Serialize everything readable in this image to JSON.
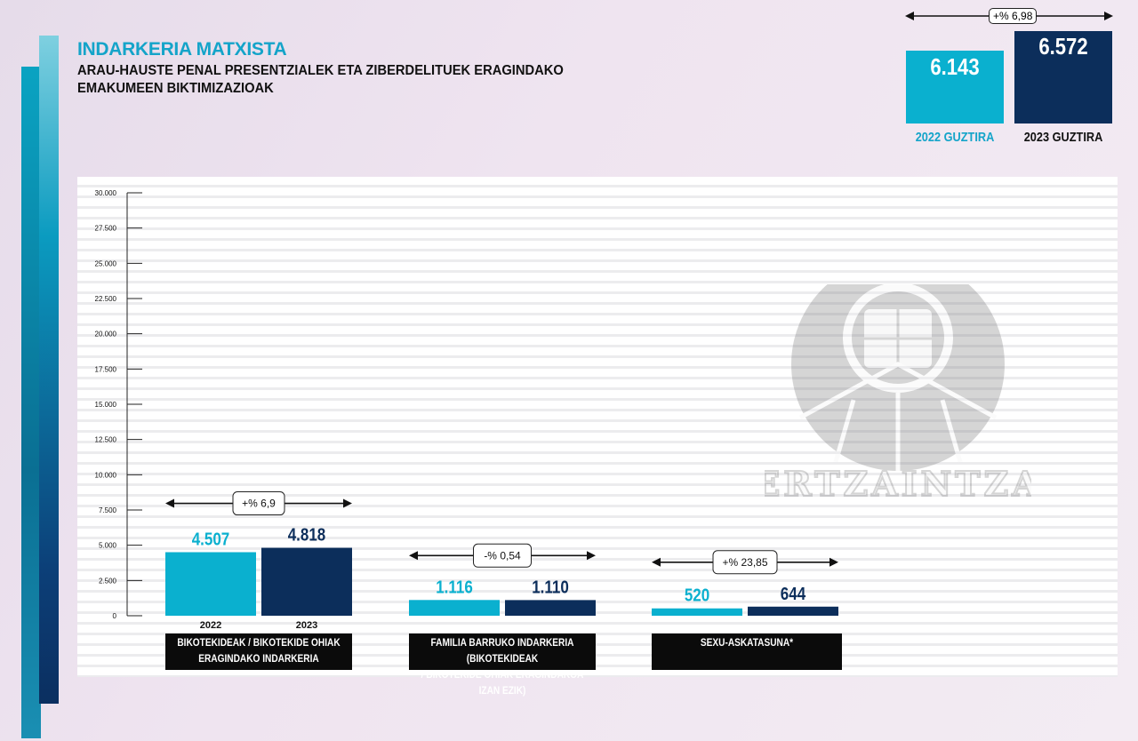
{
  "header": {
    "title": "INDARKERIA MATXISTA",
    "subtitle": "ARAU-HAUSTE PENAL PRESENTZIALEK ETA ZIBERDELITUEK ERAGINDAKO EMAKUMEEN BIKTIMIZAZIOAK"
  },
  "summary": {
    "change_label": "+% 6,98",
    "bars": [
      {
        "value": 6143,
        "value_label": "6.143",
        "label": "2022 GUZTIRA",
        "color": "#0ab0cf"
      },
      {
        "value": 6572,
        "value_label": "6.572",
        "label": "2023 GUZTIRA",
        "color": "#0c2e5b"
      }
    ]
  },
  "watermark": {
    "text": "ERTZAINTZA"
  },
  "chart_data": {
    "type": "bar",
    "ylim": [
      0,
      30000
    ],
    "yticks": [
      0,
      2500,
      5000,
      7500,
      10000,
      12500,
      15000,
      17500,
      20000,
      22500,
      25000,
      27500,
      30000
    ],
    "ytick_labels": [
      "0",
      "2.500",
      "5.000",
      "7.500",
      "10.000",
      "12.500",
      "15.000",
      "17.500",
      "20.000",
      "22.500",
      "25.000",
      "27.500",
      "30.000"
    ],
    "grid": true,
    "series_colors": {
      "2022": "#0ab0cf",
      "2023": "#0c2e5b"
    },
    "groups": [
      {
        "category": "BIKOTEKIDEAK / BIKOTEKIDE OHIAK ERAGINDAKO INDARKERIA",
        "category_lines": [
          "BIKOTEKIDEAK / BIKOTEKIDE OHIAK",
          "ERAGINDAKO INDARKERIA"
        ],
        "change_label": "+% 6,9",
        "bars": [
          {
            "year": "2022",
            "value": 4507,
            "value_label": "4.507"
          },
          {
            "year": "2023",
            "value": 4818,
            "value_label": "4.818"
          }
        ]
      },
      {
        "category": "FAMILIA BARRUKO INDARKERIA (BIKOTEKIDEAK / BIKOTEKIDE OHIAK ERAGINDAKOA IZAN EZIK)",
        "category_lines": [
          "FAMILIA BARRUKO INDARKERIA (BIKOTEKIDEAK",
          "/ BIKOTEKIDE OHIAK ERAGINDAKOA IZAN EZIK)"
        ],
        "change_label": "-% 0,54",
        "bars": [
          {
            "year": "",
            "value": 1116,
            "value_label": "1.116"
          },
          {
            "year": "",
            "value": 1110,
            "value_label": "1.110"
          }
        ]
      },
      {
        "category": "SEXU-ASKATASUNA*",
        "category_lines": [
          "SEXU-ASKATASUNA*"
        ],
        "change_label": "+% 23,85",
        "bars": [
          {
            "year": "",
            "value": 520,
            "value_label": "520"
          },
          {
            "year": "",
            "value": 644,
            "value_label": "644"
          }
        ]
      }
    ]
  }
}
